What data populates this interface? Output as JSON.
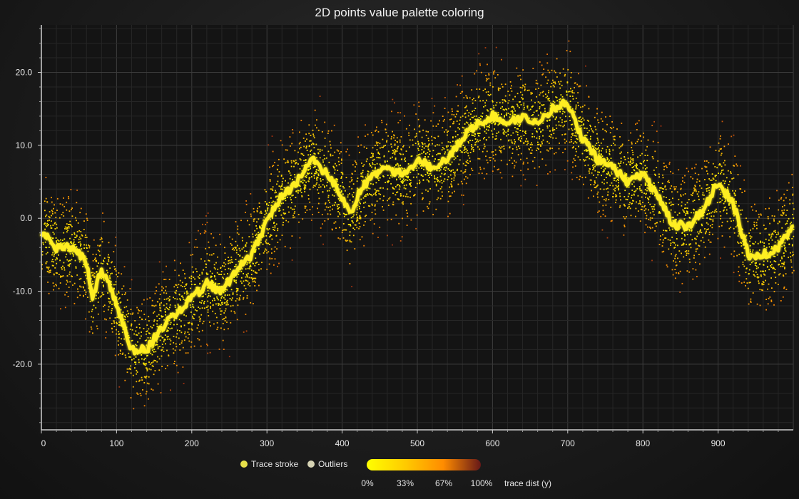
{
  "title": "2D points value palette coloring",
  "chart_data": {
    "type": "scatter",
    "title": "2D points value palette coloring",
    "xlabel": "",
    "ylabel": "",
    "xlim": [
      0,
      1000
    ],
    "ylim": [
      -29,
      26.5
    ],
    "x_ticks": [
      0,
      100,
      200,
      300,
      400,
      500,
      600,
      700,
      800,
      900
    ],
    "y_ticks": [
      20.0,
      10.0,
      0.0,
      -10.0,
      -20.0
    ],
    "grid": true,
    "colors": {
      "background": "#1c1c1c",
      "plot_background": "#141414",
      "grid": "#3a3a3a",
      "trace": "#ffee22",
      "palette_start": "#ffff00",
      "palette_mid": "#ff8c00",
      "palette_end": "#661818"
    },
    "series": [
      {
        "name": "Trace stroke",
        "kind": "line",
        "x": [
          0,
          20,
          40,
          60,
          68,
          80,
          90,
          100,
          120,
          140,
          160,
          180,
          200,
          220,
          240,
          260,
          280,
          300,
          320,
          340,
          360,
          380,
          400,
          410,
          420,
          440,
          460,
          480,
          500,
          520,
          540,
          560,
          580,
          600,
          620,
          640,
          660,
          680,
          700,
          710,
          720,
          740,
          760,
          780,
          800,
          820,
          840,
          860,
          880,
          900,
          920,
          940,
          960,
          980,
          1000
        ],
        "y": [
          -2,
          -4,
          -4,
          -6,
          -11,
          -7,
          -9,
          -12,
          -18,
          -18,
          -15,
          -13,
          -11,
          -9,
          -10,
          -7,
          -5,
          0,
          3,
          5,
          8,
          6,
          3,
          0.5,
          3,
          6,
          7,
          6,
          8,
          7,
          8,
          11,
          13,
          14,
          13,
          14,
          13,
          15,
          16,
          13,
          11,
          8,
          7,
          5,
          6,
          3,
          -1,
          -1,
          1,
          5,
          2,
          -5,
          -5,
          -4,
          -1
        ]
      },
      {
        "name": "Outliers",
        "kind": "scatter",
        "points": "noisy scatter band within about ±12 of the trace, colored by distance from the trace"
      }
    ],
    "palette_legend": {
      "labels": [
        "0%",
        "33%",
        "67%",
        "100%"
      ],
      "title": "trace dist (y)"
    },
    "legend_position": "bottom-center"
  }
}
